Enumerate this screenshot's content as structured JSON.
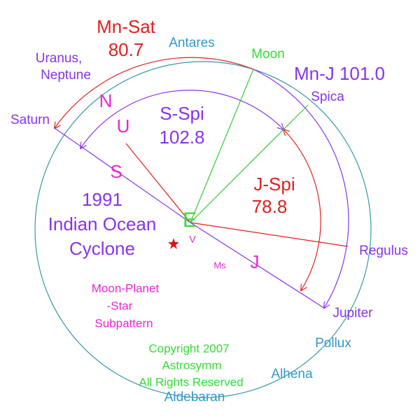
{
  "title": {
    "event_lines": [
      "1991",
      "Indian Ocean",
      "Cyclone"
    ]
  },
  "center_label": "E",
  "star_label": "V",
  "ms_label": "Ms",
  "aspects": {
    "mn_sat": {
      "name": "Mn-Sat",
      "value": "80.7"
    },
    "mn_j": "Mn-J 101.0",
    "s_spi": {
      "name": "S-Spi",
      "value": "102.8"
    },
    "j_spi": {
      "name": "J-Spi",
      "value": "78.8"
    }
  },
  "planet_letters": {
    "n": "N",
    "u": "U",
    "s": "S",
    "j": "J"
  },
  "bodies": {
    "uranus_neptune": [
      "Uranus,",
      "Neptune"
    ],
    "saturn": "Saturn",
    "antares": "Antares",
    "moon": "Moon",
    "spica": "Spica",
    "regulus": "Regulus",
    "jupiter": "Jupiter",
    "pollux": "Pollux",
    "alhena": "Alhena",
    "aldebaran": "Aldebaran"
  },
  "subpattern": [
    "Moon-Planet",
    "-Star",
    "Subpattern"
  ],
  "copyright": [
    "Copyright 2007",
    "Astrosymm",
    "All Rights Reserved"
  ]
}
